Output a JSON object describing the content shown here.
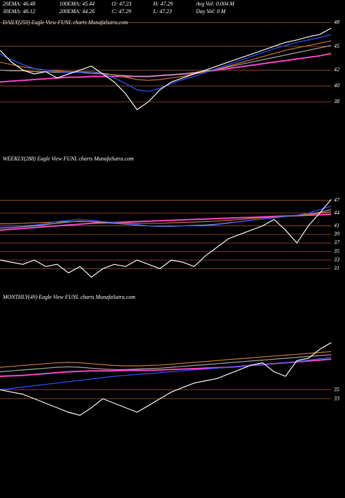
{
  "header": {
    "row1": [
      "20EMA: 46.48",
      "100EMA: 45.44",
      "O: 47.23",
      "H: 47.29",
      "Avg Vol: 0.004  M"
    ],
    "row2": [
      "30EMA: 46.12",
      "200EMA: 44.26",
      "C: 47.29",
      "L: 47.23",
      "Day Vol: 0  M"
    ]
  },
  "chart_data": [
    {
      "type": "line",
      "title": "DAILY(250) Eagle  View FUNL charts MunafaSutra.com",
      "ylim": [
        36,
        49.1
      ],
      "yticks": [
        48,
        45,
        42,
        40,
        38
      ],
      "grid": true,
      "grid_color": "#a0522d",
      "series": [
        {
          "color": "#ffffff",
          "values": [
            44.5,
            43,
            42,
            41.5,
            41.8,
            41,
            41.5,
            42,
            42.5,
            41.5,
            40.5,
            39,
            37,
            38,
            39.5,
            40.5,
            41,
            41.5,
            42,
            42.5,
            43,
            43.5,
            44,
            44.5,
            45,
            45.5,
            45.8,
            46.2,
            46.5,
            47.3
          ]
        },
        {
          "color": "#3355ff",
          "values": [
            44,
            43.3,
            42.7,
            42.2,
            42,
            41.8,
            41.7,
            41.7,
            41.8,
            41.5,
            41,
            40.3,
            39.5,
            39.3,
            39.7,
            40.3,
            40.8,
            41.2,
            41.7,
            42.2,
            42.7,
            43.2,
            43.7,
            44.2,
            44.7,
            45.1,
            45.5,
            45.8,
            46.1,
            46.5
          ]
        },
        {
          "color": "#cc7733",
          "values": [
            43,
            42.7,
            42.4,
            42.2,
            42,
            41.9,
            41.8,
            41.8,
            41.8,
            41.6,
            41.4,
            41.1,
            40.8,
            40.7,
            40.8,
            41,
            41.2,
            41.5,
            41.8,
            42.1,
            42.5,
            42.9,
            43.3,
            43.7,
            44.1,
            44.5,
            44.8,
            45.1,
            45.4,
            45.7
          ]
        },
        {
          "color": "#aaaaaa",
          "values": [
            42,
            41.9,
            41.9,
            41.8,
            41.8,
            41.7,
            41.7,
            41.7,
            41.6,
            41.5,
            41.4,
            41.3,
            41.2,
            41.2,
            41.3,
            41.4,
            41.5,
            41.7,
            41.9,
            42.1,
            42.4,
            42.7,
            43,
            43.3,
            43.6,
            43.9,
            44.2,
            44.5,
            44.8,
            45.1
          ]
        },
        {
          "color": "#ff44cc",
          "values": [
            40.5,
            40.6,
            40.7,
            40.8,
            40.9,
            41,
            41.1,
            41.1,
            41.2,
            41.2,
            41.2,
            41.2,
            41.2,
            41.2,
            41.3,
            41.4,
            41.5,
            41.6,
            41.8,
            42,
            42.2,
            42.4,
            42.6,
            42.8,
            43,
            43.2,
            43.4,
            43.6,
            43.8,
            44.1
          ]
        }
      ]
    },
    {
      "type": "line",
      "title": "WEEKLY(288) Eagle  View FUNL charts MunafaSutra.com",
      "ylim": [
        27.5,
        55
      ],
      "yticks": [
        47,
        44,
        41,
        39,
        37,
        35,
        33,
        31
      ],
      "grid": true,
      "grid_color": "#a0522d",
      "series": [
        {
          "color": "#ffffff",
          "values": [
            33,
            32.5,
            32,
            33,
            31.5,
            32,
            30,
            31.5,
            29,
            31,
            32,
            31.5,
            33,
            32,
            31,
            33,
            32.5,
            31.5,
            34,
            36,
            38,
            39,
            40,
            41,
            42.5,
            40,
            37,
            41,
            44,
            47.2
          ]
        },
        {
          "color": "#3355ff",
          "values": [
            41,
            41,
            41,
            41.2,
            41.5,
            42,
            42.3,
            42.5,
            42.3,
            42,
            41.8,
            41.5,
            41.3,
            41,
            41,
            41,
            41,
            41,
            41,
            41.3,
            41.6,
            42,
            42.3,
            42.6,
            43,
            43.3,
            43.5,
            44,
            44.8,
            45.6
          ]
        },
        {
          "color": "#cc7733",
          "values": [
            41.5,
            41.5,
            41.6,
            41.7,
            41.8,
            41.9,
            42,
            42,
            42,
            41.9,
            41.8,
            41.7,
            41.6,
            41.6,
            41.6,
            41.7,
            41.8,
            41.9,
            42,
            42.1,
            42.3,
            42.5,
            42.7,
            42.9,
            43.1,
            43.3,
            43.5,
            43.7,
            44,
            44.3
          ]
        },
        {
          "color": "#aaaaaa",
          "values": [
            40.5,
            40.6,
            40.8,
            41,
            41.3,
            41.6,
            41.9,
            42.1,
            42,
            41.8,
            41.6,
            41.4,
            41.2,
            41,
            40.9,
            40.9,
            41,
            41.1,
            41.2,
            41.4,
            41.7,
            42,
            42.3,
            42.6,
            42.9,
            43.2,
            43.4,
            43.7,
            44.2,
            44.8
          ]
        },
        {
          "color": "#ff44cc",
          "values": [
            40,
            40.2,
            40.4,
            40.6,
            40.8,
            41,
            41.2,
            41.4,
            41.6,
            41.7,
            41.8,
            41.9,
            42,
            42.1,
            42.2,
            42.3,
            42.4,
            42.5,
            42.6,
            42.7,
            42.8,
            42.9,
            43,
            43.1,
            43.2,
            43.3,
            43.4,
            43.5,
            43.6,
            43.7
          ]
        }
      ]
    },
    {
      "type": "line",
      "title": "MONTHLY(49) Eagle  View FUNL charts MunafaSutra.com",
      "ylim": [
        14,
        54
      ],
      "yticks": [
        35,
        33
      ],
      "grid": true,
      "grid_color": "#a0522d",
      "series": [
        {
          "color": "#ffffff",
          "values": [
            35,
            34.5,
            34,
            33,
            32,
            31,
            30,
            29.3,
            31,
            33,
            32,
            31,
            30,
            31.5,
            33,
            34.5,
            35.5,
            36.5,
            37,
            37.5,
            38.5,
            39.5,
            40.5,
            41,
            39,
            38,
            41.5,
            42,
            44,
            45.5
          ]
        },
        {
          "color": "#3355ff",
          "values": [
            35,
            35.3,
            35.6,
            35.9,
            36.2,
            36.5,
            36.8,
            37.1,
            37.4,
            37.7,
            38,
            38.2,
            38.4,
            38.6,
            38.8,
            39,
            39.2,
            39.4,
            39.6,
            39.8,
            40,
            40.2,
            40.4,
            40.6,
            40.8,
            41,
            41.3,
            41.6,
            41.9,
            42.2
          ]
        },
        {
          "color": "#cc7733",
          "values": [
            40,
            40.2,
            40.4,
            40.6,
            40.8,
            41,
            41.1,
            41,
            40.8,
            40.6,
            40.4,
            40.3,
            40.3,
            40.4,
            40.5,
            40.7,
            40.9,
            41.1,
            41.3,
            41.5,
            41.7,
            41.9,
            42.1,
            42.3,
            42.5,
            42.7,
            42.9,
            43.1,
            43.3,
            43.5
          ]
        },
        {
          "color": "#aaaaaa",
          "values": [
            39,
            39.2,
            39.4,
            39.6,
            39.8,
            40,
            40.1,
            40,
            39.8,
            39.6,
            39.5,
            39.5,
            39.6,
            39.7,
            39.8,
            40,
            40.2,
            40.4,
            40.6,
            40.8,
            41,
            41.2,
            41.4,
            41.6,
            41.8,
            42,
            42.2,
            42.4,
            42.6,
            42.8
          ]
        },
        {
          "color": "#ff44cc",
          "values": [
            38,
            38.1,
            38.2,
            38.4,
            38.6,
            38.8,
            39,
            39.1,
            39.2,
            39.2,
            39.2,
            39.3,
            39.3,
            39.3,
            39.4,
            39.5,
            39.6,
            39.7,
            39.8,
            39.9,
            40,
            40.2,
            40.4,
            40.6,
            40.8,
            41,
            41.2,
            41.4,
            41.6,
            41.8
          ]
        }
      ]
    }
  ]
}
